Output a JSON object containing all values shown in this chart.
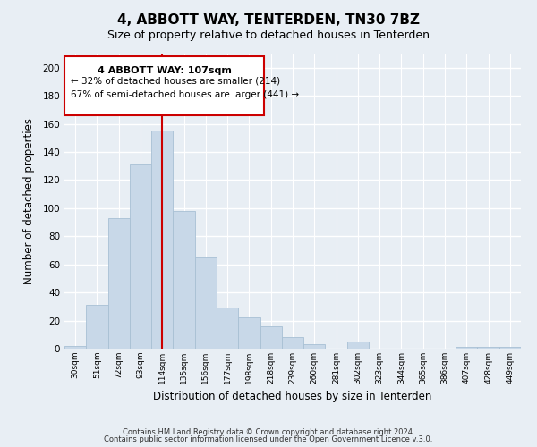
{
  "title": "4, ABBOTT WAY, TENTERDEN, TN30 7BZ",
  "subtitle": "Size of property relative to detached houses in Tenterden",
  "xlabel": "Distribution of detached houses by size in Tenterden",
  "ylabel": "Number of detached properties",
  "bar_labels": [
    "30sqm",
    "51sqm",
    "72sqm",
    "93sqm",
    "114sqm",
    "135sqm",
    "156sqm",
    "177sqm",
    "198sqm",
    "218sqm",
    "239sqm",
    "260sqm",
    "281sqm",
    "302sqm",
    "323sqm",
    "344sqm",
    "365sqm",
    "386sqm",
    "407sqm",
    "428sqm",
    "449sqm"
  ],
  "bar_values": [
    2,
    31,
    93,
    131,
    155,
    98,
    65,
    29,
    22,
    16,
    8,
    3,
    0,
    5,
    0,
    0,
    0,
    0,
    1,
    1,
    1
  ],
  "bar_color": "#c8d8e8",
  "bar_edge_color": "#a8c0d4",
  "vline_x": 4,
  "vline_color": "#cc0000",
  "ylim": [
    0,
    210
  ],
  "yticks": [
    0,
    20,
    40,
    60,
    80,
    100,
    120,
    140,
    160,
    180,
    200
  ],
  "annotation_title": "4 ABBOTT WAY: 107sqm",
  "annotation_line1": "← 32% of detached houses are smaller (214)",
  "annotation_line2": "67% of semi-detached houses are larger (441) →",
  "annotation_box_facecolor": "#ffffff",
  "annotation_box_edgecolor": "#cc0000",
  "footer1": "Contains HM Land Registry data © Crown copyright and database right 2024.",
  "footer2": "Contains public sector information licensed under the Open Government Licence v.3.0.",
  "fig_facecolor": "#e8eef4",
  "plot_facecolor": "#e8eef4",
  "grid_color": "#ffffff",
  "title_fontsize": 11,
  "subtitle_fontsize": 9,
  "ylabel_text": "Number of detached properties"
}
